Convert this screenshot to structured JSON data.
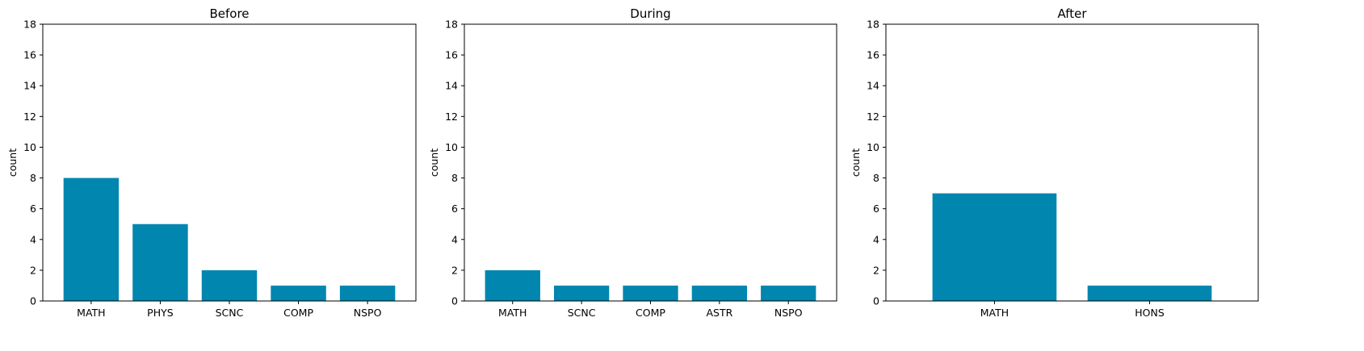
{
  "chart_data": [
    {
      "type": "bar",
      "title": "Before",
      "xlabel": "",
      "ylabel": "count",
      "categories": [
        "MATH",
        "PHYS",
        "SCNC",
        "COMP",
        "NSPO"
      ],
      "values": [
        8,
        5,
        2,
        1,
        1
      ],
      "ylim": [
        0,
        18
      ],
      "yticks": [
        0,
        2,
        4,
        6,
        8,
        10,
        12,
        14,
        16,
        18
      ],
      "color": "#0086AF",
      "grid": false
    },
    {
      "type": "bar",
      "title": "During",
      "xlabel": "",
      "ylabel": "count",
      "categories": [
        "MATH",
        "SCNC",
        "COMP",
        "ASTR",
        "NSPO"
      ],
      "values": [
        2,
        1,
        1,
        1,
        1
      ],
      "ylim": [
        0,
        18
      ],
      "yticks": [
        0,
        2,
        4,
        6,
        8,
        10,
        12,
        14,
        16,
        18
      ],
      "color": "#0086AF",
      "grid": false
    },
    {
      "type": "bar",
      "title": "After",
      "xlabel": "",
      "ylabel": "count",
      "categories": [
        "MATH",
        "HONS"
      ],
      "values": [
        7,
        1
      ],
      "ylim": [
        0,
        18
      ],
      "yticks": [
        0,
        2,
        4,
        6,
        8,
        10,
        12,
        14,
        16,
        18
      ],
      "color": "#0086AF",
      "grid": false
    }
  ]
}
